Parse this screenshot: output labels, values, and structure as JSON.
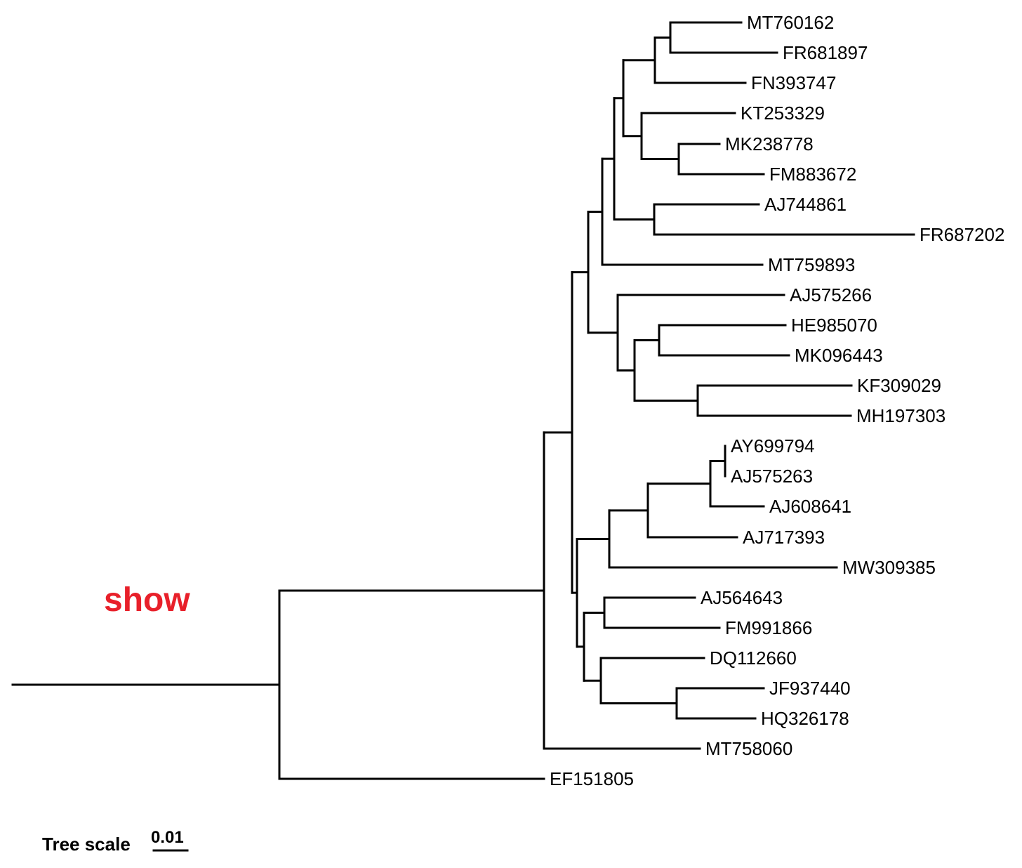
{
  "overlay_label": "show",
  "overlay_color": "#e8202a",
  "branch_color": "#000000",
  "scale_bar": {
    "title": "Tree scale",
    "value": "0.01"
  },
  "leaves": [
    "MT760162",
    "FR681897",
    "FN393747",
    "KT253329",
    "MK238778",
    "FM883672",
    "AJ744861",
    "FR687202",
    "MT759893",
    "AJ575266",
    "HE985070",
    "MK096443",
    "KF309029",
    "MH197303",
    "AY699794",
    "AJ575263",
    "AJ608641",
    "AJ717393",
    "MW309385",
    "AJ564643",
    "FM991866",
    "DQ112660",
    "JF937440",
    "HQ326178",
    "MT758060",
    "EF151805"
  ]
}
